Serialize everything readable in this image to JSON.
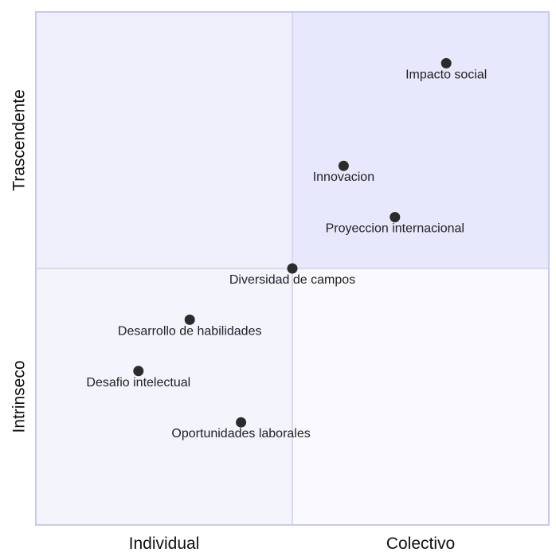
{
  "chart_data": {
    "type": "scatter",
    "title": "",
    "xlim": [
      0,
      1
    ],
    "ylim": [
      0,
      1
    ],
    "grid": false,
    "quadrant_split": {
      "x": 0.5,
      "y": 0.5
    },
    "x_quadrant_labels": [
      "Individual",
      "Colectivo"
    ],
    "y_quadrant_labels": [
      "Intrinseco",
      "Trascendente"
    ],
    "points": [
      {
        "label": "Impacto social",
        "x": 0.8,
        "y": 0.9
      },
      {
        "label": "Innovacion",
        "x": 0.6,
        "y": 0.7
      },
      {
        "label": "Proyeccion internacional",
        "x": 0.7,
        "y": 0.6
      },
      {
        "label": "Diversidad de campos",
        "x": 0.5,
        "y": 0.5
      },
      {
        "label": "Desarrollo de habilidades",
        "x": 0.3,
        "y": 0.4
      },
      {
        "label": "Desafio intelectual",
        "x": 0.2,
        "y": 0.3
      },
      {
        "label": "Oportunidades laborales",
        "x": 0.4,
        "y": 0.2
      }
    ],
    "colors": {
      "quadrant_top_left": "#f0f0fd",
      "quadrant_top_right": "#e8e8fc",
      "quadrant_bottom_left": "#f4f4fd",
      "quadrant_bottom_right": "#f9f9fe",
      "border": "#c9c9ef",
      "divider": "#cfcfee",
      "marker": "#2b2b2b"
    }
  }
}
